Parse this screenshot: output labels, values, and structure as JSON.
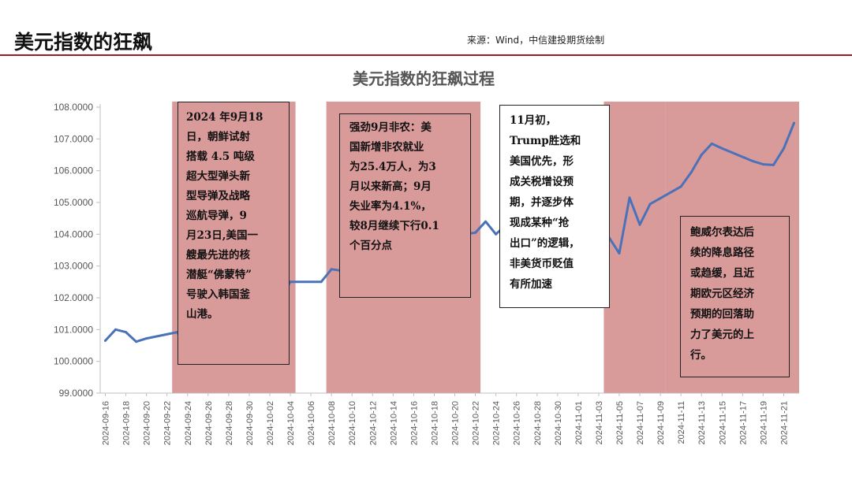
{
  "header": {
    "title": "美元指数的狂飙",
    "source": "来源：Wind，中信建投期货绘制"
  },
  "colors": {
    "accent_red": "#9b1c24",
    "line_blue": "#4a72b8",
    "shade": "#d99a9a"
  },
  "chart_data": {
    "type": "line",
    "title": "美元指数的狂飙过程",
    "xlabel": "",
    "ylabel": "",
    "ylim": [
      99,
      108
    ],
    "y_ticks": [
      "99.0000",
      "100.0000",
      "101.0000",
      "102.0000",
      "103.0000",
      "104.0000",
      "105.0000",
      "106.0000",
      "107.0000",
      "108.0000"
    ],
    "x_ticks": [
      "2024-09-16",
      "2024-09-18",
      "2024-09-20",
      "2024-09-22",
      "2024-09-24",
      "2024-09-26",
      "2024-09-28",
      "2024-09-30",
      "2024-10-02",
      "2024-10-04",
      "2024-10-06",
      "2024-10-08",
      "2024-10-10",
      "2024-10-12",
      "2024-10-14",
      "2024-10-16",
      "2024-10-18",
      "2024-10-20",
      "2024-10-22",
      "2024-10-24",
      "2024-10-26",
      "2024-10-28",
      "2024-10-30",
      "2024-11-01",
      "2024-11-03",
      "2024-11-05",
      "2024-11-07",
      "2024-11-09",
      "2024-11-11",
      "2024-11-13",
      "2024-11-15",
      "2024-11-17",
      "2024-11-19",
      "2024-11-21"
    ],
    "x_start": "2024-09-16",
    "x_end": "2024-11-22",
    "grid": false,
    "legend": "none",
    "series": [
      {
        "x": [
          "2024-09-16",
          "2024-09-17",
          "2024-09-18",
          "2024-09-19",
          "2024-09-20",
          "2024-09-23",
          "2024-09-24",
          "2024-09-25",
          "2024-09-26",
          "2024-09-27",
          "2024-09-30",
          "2024-10-01",
          "2024-10-02",
          "2024-10-03",
          "2024-10-04",
          "2024-10-07",
          "2024-10-08",
          "2024-10-09",
          "2024-10-10",
          "2024-10-11",
          "2024-10-14",
          "2024-10-15",
          "2024-10-16",
          "2024-10-17",
          "2024-10-18",
          "2024-10-21",
          "2024-10-22",
          "2024-10-23",
          "2024-10-24",
          "2024-10-25",
          "2024-10-28",
          "2024-10-29",
          "2024-10-30",
          "2024-10-31",
          "2024-11-01",
          "2024-11-04",
          "2024-11-05",
          "2024-11-06",
          "2024-11-07",
          "2024-11-08",
          "2024-11-11",
          "2024-11-12",
          "2024-11-13",
          "2024-11-14",
          "2024-11-15",
          "2024-11-18",
          "2024-11-19",
          "2024-11-20",
          "2024-11-21",
          "2024-11-22"
        ],
        "values": [
          100.65,
          101.0,
          100.92,
          100.62,
          100.72,
          100.92,
          100.37,
          100.92,
          100.5,
          100.4,
          100.75,
          101.2,
          101.62,
          101.95,
          102.5,
          102.5,
          102.9,
          102.85,
          102.95,
          103.05,
          103.22,
          103.25,
          103.5,
          103.8,
          103.45,
          104.0,
          104.05,
          104.4,
          104.0,
          104.3,
          104.3,
          104.2,
          104.05,
          103.9,
          104.3,
          103.9,
          103.4,
          105.15,
          104.3,
          104.95,
          105.5,
          105.95,
          106.5,
          106.85,
          106.7,
          106.3,
          106.2,
          106.18,
          106.7,
          107.5
        ]
      }
    ],
    "shaded_ranges": [
      [
        "2024-09-23",
        "2024-10-04"
      ],
      [
        "2024-10-08",
        "2024-10-22"
      ],
      [
        "2024-11-04",
        "2024-11-09"
      ],
      [
        "2024-11-10",
        "2024-11-22"
      ]
    ]
  },
  "annotations": [
    {
      "text": "2024 年9月18\n日，朝鲜试射\n搭载 4.5 吨级\n超大型弹头新\n型导弹及战略\n巡航导弹，9\n月23日,美国一\n艘最先进的核\n潜艇“佛蒙特”\n号驶入韩国釜\n山港。"
    },
    {
      "text": "强劲9月非农：美\n国新增非农就业\n为25.4万人，为3\n月以来新高；9月\n失业率为4.1%，\n较8月继续下行0.1\n个百分点"
    },
    {
      "text": "11月初，\nTrump胜选和\n美国优先，形\n成关税增设预\n期，并逐步体\n现成某种“抢\n出口”的逻辑，\n非美货币贬值\n有所加速"
    },
    {
      "text": "鲍威尔表达后\n续的降息路径\n或趋缓，且近\n期欧元区经济\n预期的回落助\n力了美元的上\n行。"
    }
  ]
}
